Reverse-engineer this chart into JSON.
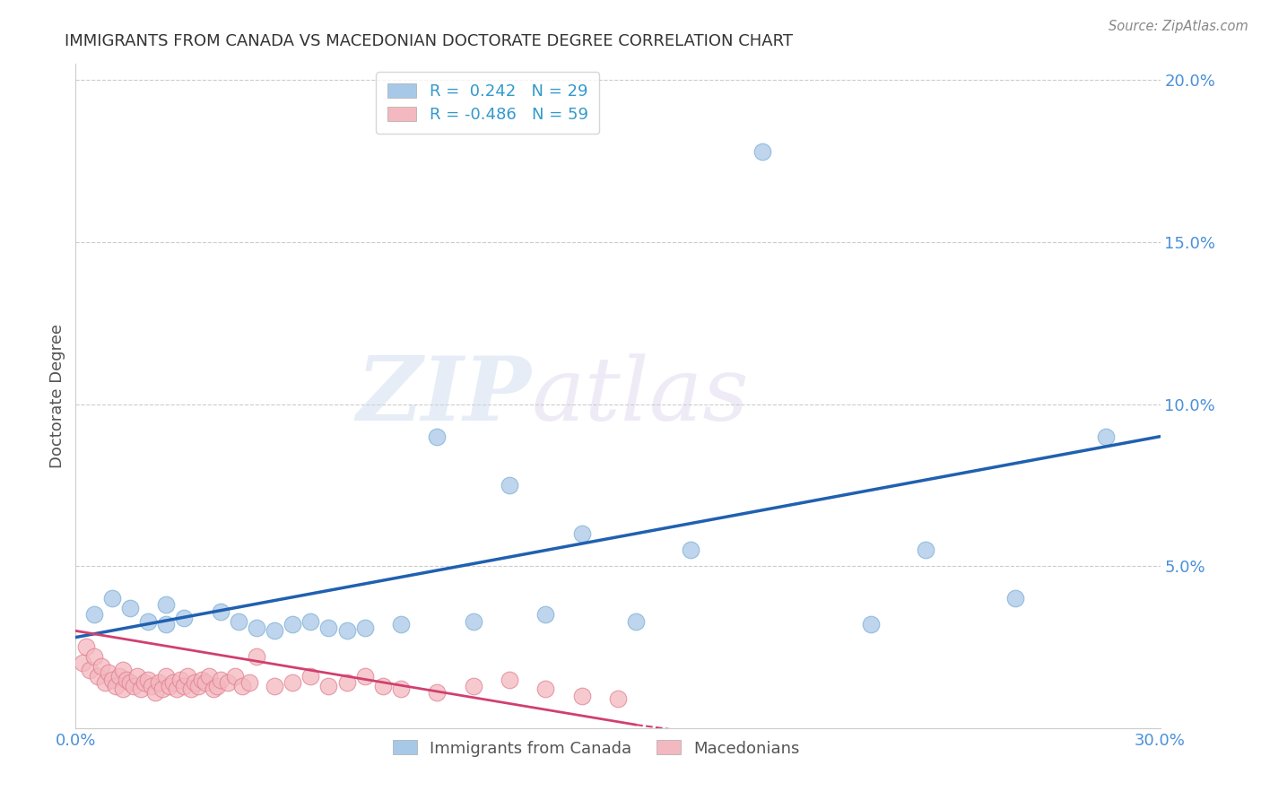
{
  "title": "IMMIGRANTS FROM CANADA VS MACEDONIAN DOCTORATE DEGREE CORRELATION CHART",
  "source": "Source: ZipAtlas.com",
  "ylabel": "Doctorate Degree",
  "xlim": [
    0.0,
    0.3
  ],
  "ylim": [
    0.0,
    0.205
  ],
  "legend_blue_r": "0.242",
  "legend_blue_n": "29",
  "legend_pink_r": "-0.486",
  "legend_pink_n": "59",
  "blue_color": "#a8c8e8",
  "blue_edge_color": "#7bafd4",
  "pink_color": "#f4b8c0",
  "pink_edge_color": "#e08090",
  "trendline_blue_color": "#2060b0",
  "trendline_pink_color": "#d04070",
  "watermark_zip": "ZIP",
  "watermark_atlas": "atlas",
  "background_color": "#ffffff",
  "grid_color": "#cccccc",
  "blue_scatter_x": [
    0.005,
    0.01,
    0.015,
    0.02,
    0.025,
    0.025,
    0.03,
    0.04,
    0.045,
    0.05,
    0.055,
    0.06,
    0.065,
    0.07,
    0.075,
    0.08,
    0.09,
    0.1,
    0.11,
    0.12,
    0.13,
    0.14,
    0.155,
    0.17,
    0.19,
    0.22,
    0.235,
    0.26,
    0.285
  ],
  "blue_scatter_y": [
    0.035,
    0.04,
    0.037,
    0.033,
    0.038,
    0.032,
    0.034,
    0.036,
    0.033,
    0.031,
    0.03,
    0.032,
    0.033,
    0.031,
    0.03,
    0.031,
    0.032,
    0.09,
    0.033,
    0.075,
    0.035,
    0.06,
    0.033,
    0.055,
    0.178,
    0.032,
    0.055,
    0.04,
    0.09
  ],
  "pink_scatter_x": [
    0.002,
    0.003,
    0.004,
    0.005,
    0.006,
    0.007,
    0.008,
    0.009,
    0.01,
    0.011,
    0.012,
    0.013,
    0.013,
    0.014,
    0.015,
    0.016,
    0.017,
    0.018,
    0.019,
    0.02,
    0.021,
    0.022,
    0.023,
    0.024,
    0.025,
    0.026,
    0.027,
    0.028,
    0.029,
    0.03,
    0.031,
    0.032,
    0.033,
    0.034,
    0.035,
    0.036,
    0.037,
    0.038,
    0.039,
    0.04,
    0.042,
    0.044,
    0.046,
    0.048,
    0.05,
    0.055,
    0.06,
    0.065,
    0.07,
    0.075,
    0.08,
    0.085,
    0.09,
    0.1,
    0.11,
    0.12,
    0.13,
    0.14,
    0.15
  ],
  "pink_scatter_y": [
    0.02,
    0.025,
    0.018,
    0.022,
    0.016,
    0.019,
    0.014,
    0.017,
    0.015,
    0.013,
    0.016,
    0.018,
    0.012,
    0.015,
    0.014,
    0.013,
    0.016,
    0.012,
    0.014,
    0.015,
    0.013,
    0.011,
    0.014,
    0.012,
    0.016,
    0.013,
    0.014,
    0.012,
    0.015,
    0.013,
    0.016,
    0.012,
    0.014,
    0.013,
    0.015,
    0.014,
    0.016,
    0.012,
    0.013,
    0.015,
    0.014,
    0.016,
    0.013,
    0.014,
    0.022,
    0.013,
    0.014,
    0.016,
    0.013,
    0.014,
    0.016,
    0.013,
    0.012,
    0.011,
    0.013,
    0.015,
    0.012,
    0.01,
    0.009
  ],
  "blue_trendline_x": [
    0.0,
    0.3
  ],
  "blue_trendline_y": [
    0.028,
    0.09
  ],
  "pink_trendline_x": [
    0.0,
    0.155
  ],
  "pink_trendline_y": [
    0.03,
    0.001
  ]
}
